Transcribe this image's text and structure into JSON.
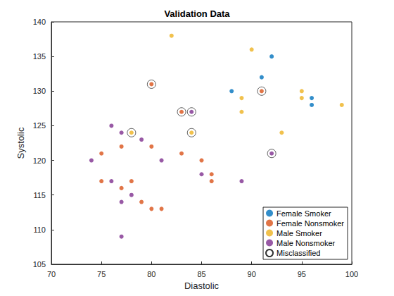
{
  "chart_data": {
    "type": "scatter",
    "title": "Validation Data",
    "x_label": "Diastolic",
    "y_label": "Systolic",
    "xlim": [
      70,
      100
    ],
    "xticks": [
      70,
      75,
      80,
      85,
      90,
      95,
      100
    ],
    "ylim": [
      105,
      140
    ],
    "yticks": [
      105,
      110,
      115,
      120,
      125,
      130,
      135,
      140
    ],
    "grid": false,
    "legend": "southeast",
    "series": [
      {
        "name": "Female Smoker",
        "color": "#0072BD",
        "marker": "filled",
        "x": [
          88,
          91,
          92,
          96,
          96
        ],
        "values": [
          130,
          132,
          135,
          129,
          128
        ]
      },
      {
        "name": "Female Nonsmoker",
        "color": "#D95319",
        "marker": "filled",
        "x": [
          75,
          75,
          77,
          77,
          78,
          79,
          80,
          80,
          81,
          83,
          85,
          86,
          86,
          80,
          83,
          91
        ],
        "values": [
          121,
          117,
          122,
          116,
          117,
          114,
          122,
          113,
          113,
          121,
          120,
          118,
          117,
          131,
          127,
          130
        ]
      },
      {
        "name": "Male Smoker",
        "color": "#EDB120",
        "marker": "filled",
        "x": [
          82,
          90,
          89,
          89,
          93,
          95,
          95,
          99,
          78,
          84
        ],
        "values": [
          138,
          136,
          129,
          127,
          124,
          130,
          129,
          128,
          124,
          124
        ]
      },
      {
        "name": "Male Nonsmoker",
        "color": "#7E2F8E",
        "marker": "filled",
        "x": [
          74,
          76,
          76,
          77,
          77,
          77,
          78,
          79,
          81,
          85,
          89,
          84,
          92
        ],
        "values": [
          120,
          125,
          117,
          124,
          114,
          109,
          115,
          123,
          120,
          118,
          117,
          127,
          121
        ]
      },
      {
        "name": "Misclassified",
        "color": "#000000",
        "marker": "open",
        "x": [
          80,
          83,
          84,
          78,
          84,
          91,
          92
        ],
        "values": [
          131,
          127,
          127,
          124,
          124,
          130,
          121
        ]
      }
    ]
  }
}
